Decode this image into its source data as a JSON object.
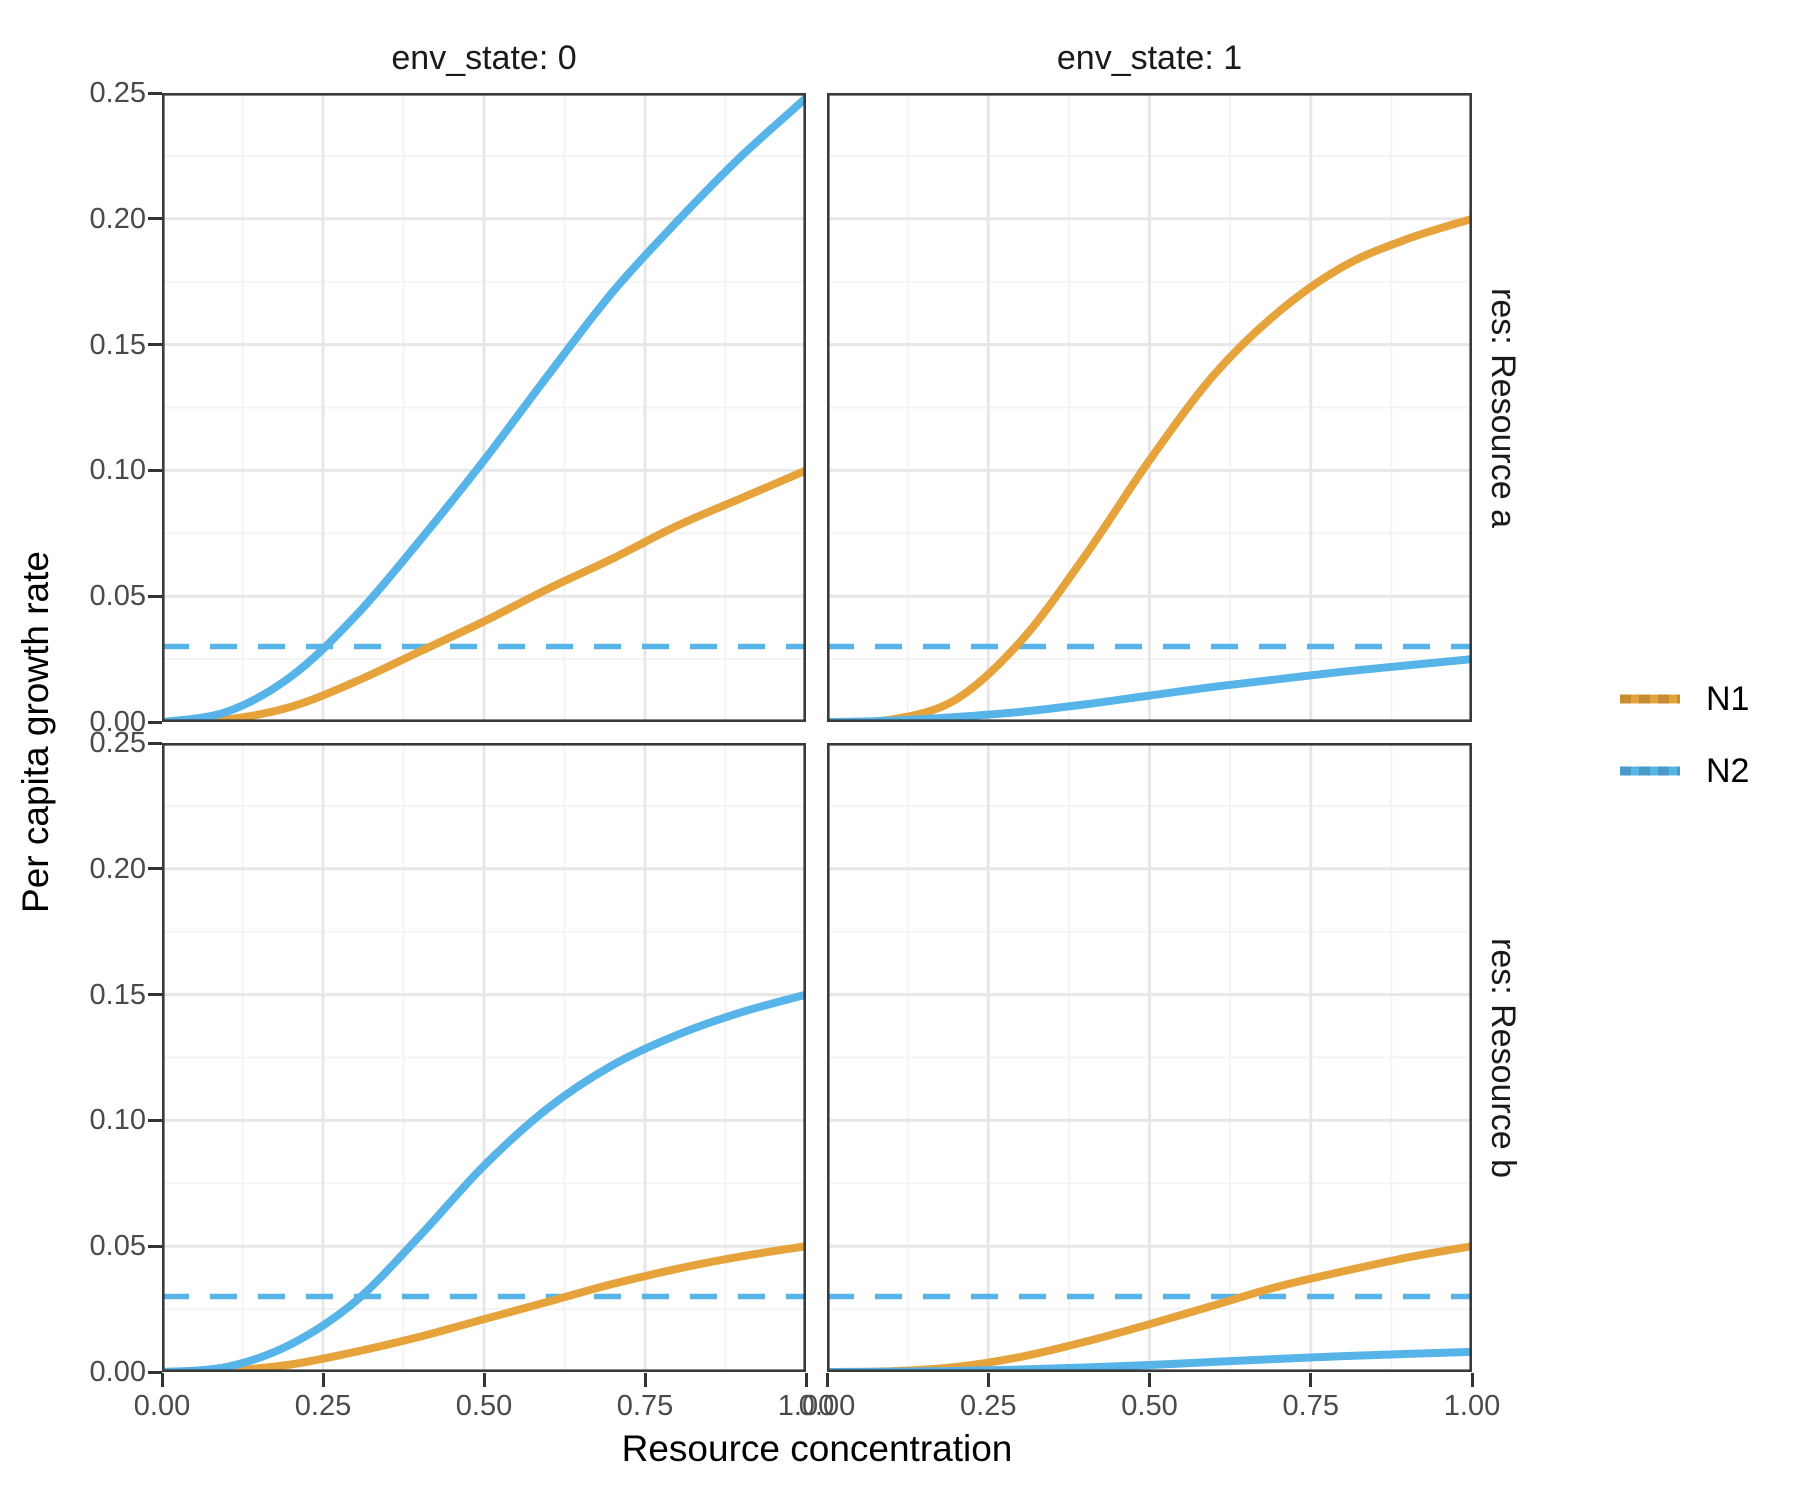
{
  "chart_data": {
    "type": "line",
    "title": "",
    "xlabel": "Resource concentration",
    "ylabel": "Per capita growth rate",
    "x_range": [
      0,
      1
    ],
    "y_range": [
      0,
      0.25
    ],
    "x": [
      0,
      0.1,
      0.2,
      0.3,
      0.4,
      0.5,
      0.6,
      0.7,
      0.8,
      0.9,
      1.0
    ],
    "x_tick_values": [
      0,
      0.25,
      0.5,
      0.75,
      1.0
    ],
    "x_tick_labels": [
      "0.00",
      "0.25",
      "0.50",
      "0.75",
      "1.00"
    ],
    "y_tick_values": [
      0,
      0.05,
      0.1,
      0.15,
      0.2,
      0.25
    ],
    "y_tick_labels": [
      "0.00",
      "0.05",
      "0.10",
      "0.15",
      "0.20",
      "0.25"
    ],
    "x_minor_values": [
      0.125,
      0.375,
      0.625,
      0.875
    ],
    "y_minor_values": [
      0.025,
      0.075,
      0.125,
      0.175,
      0.225
    ],
    "grid": true,
    "legend_position": "right",
    "facets": {
      "col_variable": "env_state",
      "row_variable": "res",
      "col_labels": [
        "env_state: 0",
        "env_state: 1"
      ],
      "row_labels": [
        "res: Resource a",
        "res: Resource b"
      ]
    },
    "hline": {
      "value": 0.03,
      "linetype": "dashed",
      "color": "#56B4E9"
    },
    "series_colors": {
      "N1": "#E7A33B",
      "N2": "#56B4E9"
    },
    "panels": [
      {
        "row": 0,
        "col": 0,
        "row_label": "res: Resource a",
        "col_label": "env_state: 0",
        "series": [
          {
            "name": "N1",
            "values": [
              0,
              0.001,
              0.006,
              0.016,
              0.028,
              0.04,
              0.053,
              0.065,
              0.078,
              0.089,
              0.1
            ]
          },
          {
            "name": "N2",
            "values": [
              0,
              0.004,
              0.018,
              0.042,
              0.072,
              0.104,
              0.138,
              0.171,
              0.199,
              0.225,
              0.248
            ]
          }
        ]
      },
      {
        "row": 0,
        "col": 1,
        "row_label": "res: Resource a",
        "col_label": "env_state: 1",
        "series": [
          {
            "name": "N1",
            "values": [
              0,
              0.001,
              0.009,
              0.032,
              0.066,
              0.104,
              0.138,
              0.163,
              0.181,
              0.192,
              0.2
            ]
          },
          {
            "name": "N2",
            "values": [
              0,
              0.0005,
              0.002,
              0.004,
              0.007,
              0.0105,
              0.014,
              0.017,
              0.02,
              0.0225,
              0.025
            ]
          }
        ]
      },
      {
        "row": 1,
        "col": 0,
        "row_label": "res: Resource b",
        "col_label": "env_state: 0",
        "series": [
          {
            "name": "N1",
            "values": [
              0,
              0.0005,
              0.003,
              0.008,
              0.014,
              0.021,
              0.028,
              0.035,
              0.041,
              0.046,
              0.05
            ]
          },
          {
            "name": "N2",
            "values": [
              0,
              0.002,
              0.011,
              0.028,
              0.054,
              0.082,
              0.105,
              0.122,
              0.134,
              0.143,
              0.15
            ]
          }
        ]
      },
      {
        "row": 1,
        "col": 1,
        "row_label": "res: Resource b",
        "col_label": "env_state: 1",
        "series": [
          {
            "name": "N1",
            "values": [
              0,
              0.0003,
              0.002,
              0.006,
              0.012,
              0.019,
              0.0265,
              0.034,
              0.04,
              0.0455,
              0.05
            ]
          },
          {
            "name": "N2",
            "values": [
              0,
              0.0001,
              0.0004,
              0.001,
              0.0018,
              0.0028,
              0.004,
              0.0052,
              0.0063,
              0.0072,
              0.008
            ]
          }
        ]
      }
    ]
  },
  "legend": {
    "items": [
      {
        "label": "N1",
        "color": "#E7A33B"
      },
      {
        "label": "N2",
        "color": "#56B4E9"
      }
    ]
  },
  "style_colors": {
    "panel_border": "#3a3a3a",
    "grid_major": "#e7e7e7",
    "grid_minor": "#f3f3f3",
    "tick": "#333333",
    "tick_label": "#4a4a4a"
  }
}
